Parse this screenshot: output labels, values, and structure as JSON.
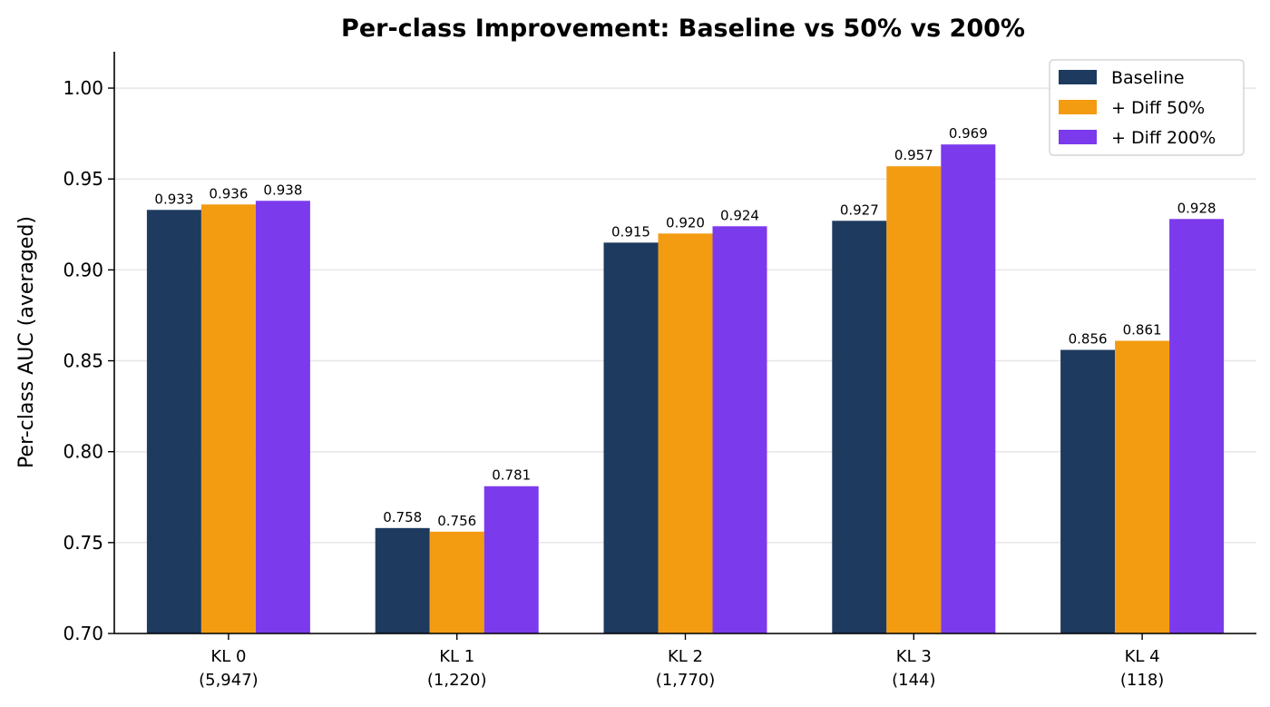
{
  "chart_data": {
    "type": "bar",
    "title": "Per-class Improvement: Baseline vs 50% vs 200%",
    "ylabel": "Per-class AUC (averaged)",
    "xlabel": "",
    "ylim": [
      0.7,
      1.02
    ],
    "yticks": [
      "0.70",
      "0.75",
      "0.80",
      "0.85",
      "0.90",
      "0.95",
      "1.00"
    ],
    "grid": "horizontal",
    "legend_position": "top-right",
    "categories": [
      {
        "name": "KL 0",
        "count": "(5,947)"
      },
      {
        "name": "KL 1",
        "count": "(1,220)"
      },
      {
        "name": "KL 2",
        "count": "(1,770)"
      },
      {
        "name": "KL 3",
        "count": "(144)"
      },
      {
        "name": "KL 4",
        "count": "(118)"
      }
    ],
    "series": [
      {
        "name": "Baseline",
        "color": "#1e3a5f",
        "values": [
          0.933,
          0.758,
          0.915,
          0.927,
          0.856
        ],
        "labels": [
          "0.933",
          "0.758",
          "0.915",
          "0.927",
          "0.856"
        ]
      },
      {
        "name": "+ Diff 50%",
        "color": "#f39c12",
        "values": [
          0.936,
          0.756,
          0.92,
          0.957,
          0.861
        ],
        "labels": [
          "0.936",
          "0.756",
          "0.920",
          "0.957",
          "0.861"
        ]
      },
      {
        "name": "+ Diff 200%",
        "color": "#7c3aed",
        "values": [
          0.938,
          0.781,
          0.924,
          0.969,
          0.928
        ],
        "labels": [
          "0.938",
          "0.781",
          "0.924",
          "0.969",
          "0.928"
        ]
      }
    ]
  }
}
